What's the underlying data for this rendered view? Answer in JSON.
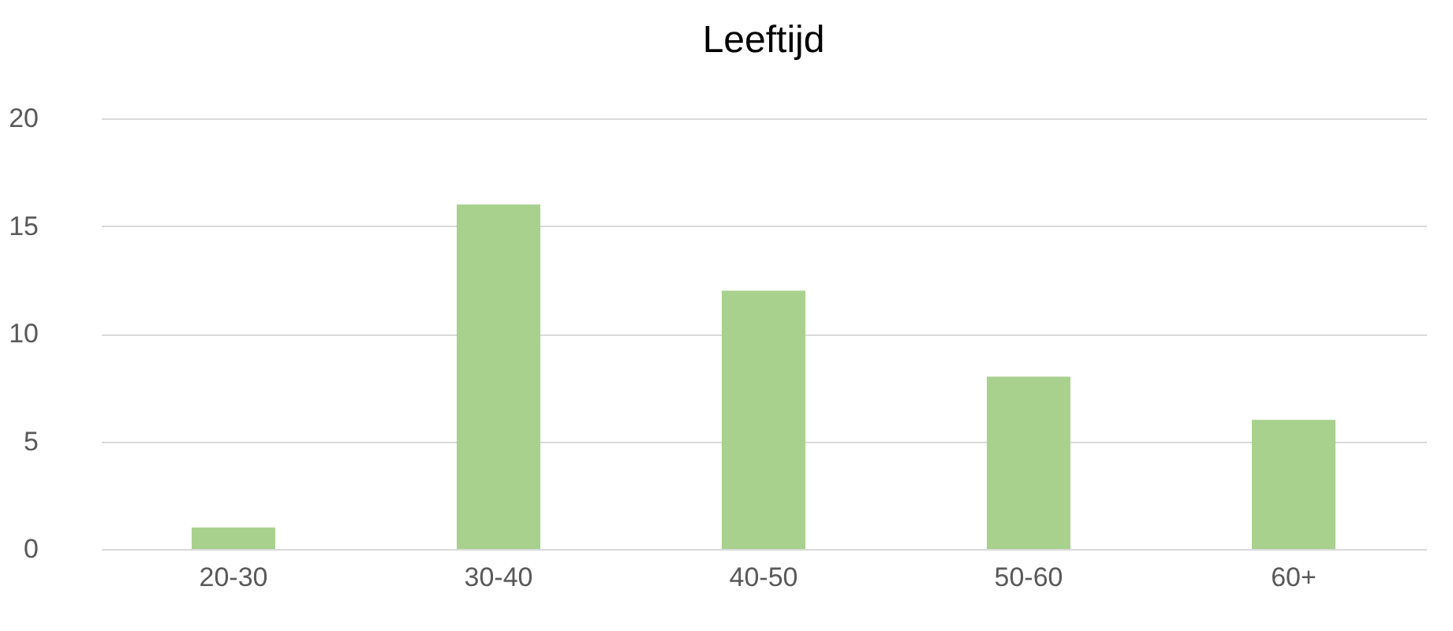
{
  "chart_data": {
    "type": "bar",
    "title": "Leeftijd",
    "categories": [
      "20-30",
      "30-40",
      "40-50",
      "50-60",
      "60+"
    ],
    "values": [
      1,
      16,
      12,
      8,
      6
    ],
    "color": "#a9d18e",
    "ylim": [
      0,
      20
    ],
    "yticks": [
      0,
      5,
      10,
      15,
      20
    ],
    "grid": "y"
  }
}
